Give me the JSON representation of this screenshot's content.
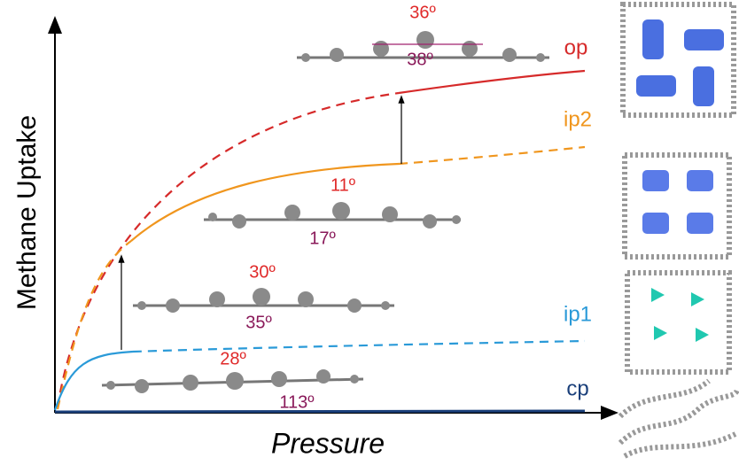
{
  "axes": {
    "y_label": "Methane Uptake",
    "x_label": "Pressure"
  },
  "curves": [
    {
      "label": "op"
    },
    {
      "label": "ip2"
    },
    {
      "label": "ip1"
    },
    {
      "label": "cp"
    }
  ],
  "structures": [
    {
      "top": "36º",
      "bottom": "38º"
    },
    {
      "top": "11º",
      "bottom": "17º"
    },
    {
      "top": "30º",
      "bottom": "35º"
    },
    {
      "top": "28º",
      "bottom": "113º"
    }
  ]
}
